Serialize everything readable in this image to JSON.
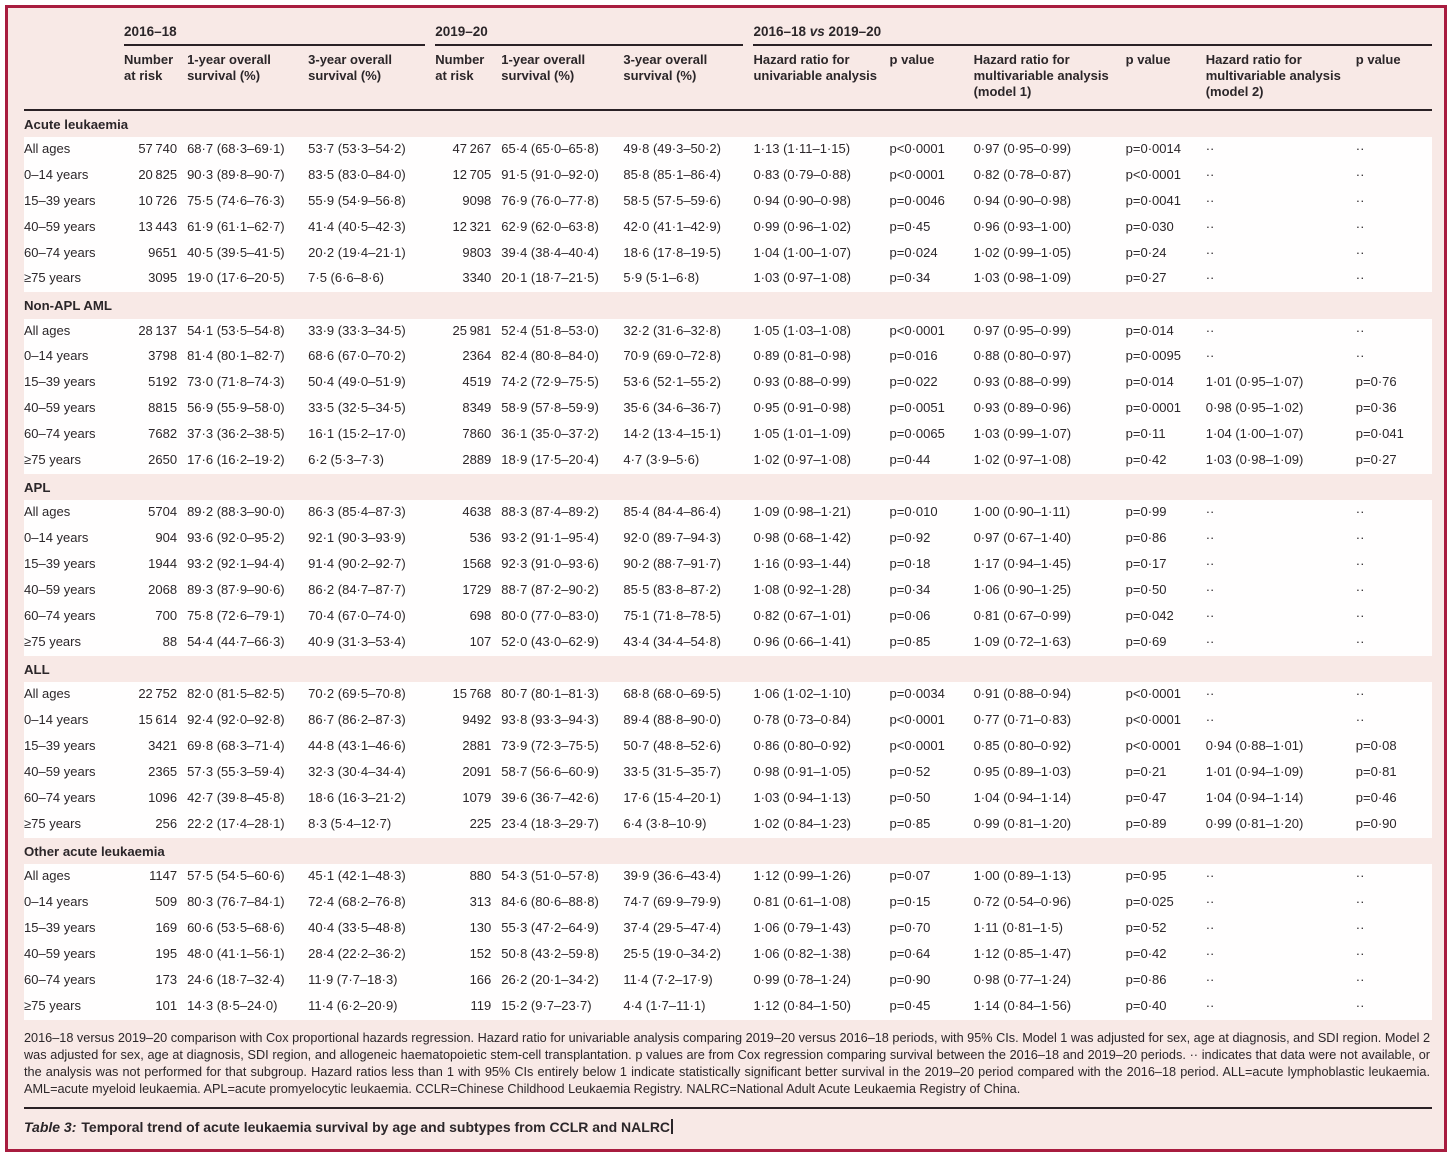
{
  "colors": {
    "frame": "#a81c3f",
    "pink": "#f8e9e6",
    "white": "#fffefe",
    "rule": "#2a2125",
    "text": "#2b2629"
  },
  "table": {
    "groups": [
      {
        "label": "2016–18",
        "span": 3,
        "parts": [
          {
            "t": "2016–18"
          }
        ]
      },
      {
        "label": "2019–20",
        "span": 3,
        "parts": [
          {
            "t": "2019–20"
          }
        ]
      },
      {
        "label": "2016–18 vs 2019–20",
        "span": 6,
        "parts": [
          {
            "t": "2016–18 "
          },
          {
            "t": "vs",
            "italic": true
          },
          {
            "t": " 2019–20"
          }
        ]
      }
    ],
    "columns": [
      "Number at risk",
      "1-year overall survival (%)",
      "3-year overall survival (%)",
      "Number at risk",
      "1-year overall survival (%)",
      "3-year overall survival (%)",
      "Hazard ratio for univariable analysis",
      "p value",
      "Hazard ratio for multivariable analysis (model 1)",
      "p value",
      "Hazard ratio for multivariable analysis (model 2)",
      "p value"
    ],
    "sections": [
      {
        "name": "Acute leukaemia",
        "rows": [
          {
            "label": "All ages",
            "cells": [
              "57 740",
              "68·7 (68·3–69·1)",
              "53·7 (53·3–54·2)",
              "47 267",
              "65·4 (65·0–65·8)",
              "49·8 (49·3–50·2)",
              "1·13 (1·11–1·15)",
              "p<0·0001",
              "0·97 (0·95–0·99)",
              "p=0·0014",
              "··",
              "··"
            ]
          },
          {
            "label": "0–14 years",
            "cells": [
              "20 825",
              "90·3 (89·8–90·7)",
              "83·5 (83·0–84·0)",
              "12 705",
              "91·5 (91·0–92·0)",
              "85·8 (85·1–86·4)",
              "0·83 (0·79–0·88)",
              "p<0·0001",
              "0·82 (0·78–0·87)",
              "p<0·0001",
              "··",
              "··"
            ]
          },
          {
            "label": "15–39 years",
            "cells": [
              "10 726",
              "75·5 (74·6–76·3)",
              "55·9 (54·9–56·8)",
              "9098",
              "76·9 (76·0–77·8)",
              "58·5 (57·5–59·6)",
              "0·94 (0·90–0·98)",
              "p=0·0046",
              "0·94 (0·90–0·98)",
              "p=0·0041",
              "··",
              "··"
            ]
          },
          {
            "label": "40–59 years",
            "cells": [
              "13 443",
              "61·9 (61·1–62·7)",
              "41·4 (40·5–42·3)",
              "12 321",
              "62·9 (62·0–63·8)",
              "42·0 (41·1–42·9)",
              "0·99 (0·96–1·02)",
              "p=0·45",
              "0·96 (0·93–1·00)",
              "p=0·030",
              "··",
              "··"
            ]
          },
          {
            "label": "60–74 years",
            "cells": [
              "9651",
              "40·5 (39·5–41·5)",
              "20·2 (19·4–21·1)",
              "9803",
              "39·4 (38·4–40·4)",
              "18·6 (17·8–19·5)",
              "1·04 (1·00–1·07)",
              "p=0·024",
              "1·02 (0·99–1·05)",
              "p=0·24",
              "··",
              "··"
            ]
          },
          {
            "label": "≥75 years",
            "cells": [
              "3095",
              "19·0 (17·6–20·5)",
              "7·5 (6·6–8·6)",
              "3340",
              "20·1 (18·7–21·5)",
              "5·9 (5·1–6·8)",
              "1·03 (0·97–1·08)",
              "p=0·34",
              "1·03 (0·98–1·09)",
              "p=0·27",
              "··",
              "··"
            ]
          }
        ]
      },
      {
        "name": "Non-APL AML",
        "rows": [
          {
            "label": "All ages",
            "cells": [
              "28 137",
              "54·1 (53·5–54·8)",
              "33·9 (33·3–34·5)",
              "25 981",
              "52·4 (51·8–53·0)",
              "32·2 (31·6–32·8)",
              "1·05 (1·03–1·08)",
              "p<0·0001",
              "0·97 (0·95–0·99)",
              "p=0·014",
              "··",
              "··"
            ]
          },
          {
            "label": "0–14 years",
            "cells": [
              "3798",
              "81·4 (80·1–82·7)",
              "68·6 (67·0–70·2)",
              "2364",
              "82·4 (80·8–84·0)",
              "70·9 (69·0–72·8)",
              "0·89 (0·81–0·98)",
              "p=0·016",
              "0·88 (0·80–0·97)",
              "p=0·0095",
              "··",
              "··"
            ]
          },
          {
            "label": "15–39 years",
            "cells": [
              "5192",
              "73·0 (71·8–74·3)",
              "50·4 (49·0–51·9)",
              "4519",
              "74·2 (72·9–75·5)",
              "53·6 (52·1–55·2)",
              "0·93 (0·88–0·99)",
              "p=0·022",
              "0·93 (0·88–0·99)",
              "p=0·014",
              "1·01 (0·95–1·07)",
              "p=0·76"
            ]
          },
          {
            "label": "40–59 years",
            "cells": [
              "8815",
              "56·9 (55·9–58·0)",
              "33·5 (32·5–34·5)",
              "8349",
              "58·9 (57·8–59·9)",
              "35·6 (34·6–36·7)",
              "0·95 (0·91–0·98)",
              "p=0·0051",
              "0·93 (0·89–0·96)",
              "p=0·0001",
              "0·98 (0·95–1·02)",
              "p=0·36"
            ]
          },
          {
            "label": "60–74 years",
            "cells": [
              "7682",
              "37·3 (36·2–38·5)",
              "16·1 (15·2–17·0)",
              "7860",
              "36·1 (35·0–37·2)",
              "14·2 (13·4–15·1)",
              "1·05 (1·01–1·09)",
              "p=0·0065",
              "1·03 (0·99–1·07)",
              "p=0·11",
              "1·04 (1·00–1·07)",
              "p=0·041"
            ]
          },
          {
            "label": "≥75 years",
            "cells": [
              "2650",
              "17·6 (16·2–19·2)",
              "6·2 (5·3–7·3)",
              "2889",
              "18·9 (17·5–20·4)",
              "4·7 (3·9–5·6)",
              "1·02 (0·97–1·08)",
              "p=0·44",
              "1·02 (0·97–1·08)",
              "p=0·42",
              "1·03 (0·98–1·09)",
              "p=0·27"
            ]
          }
        ]
      },
      {
        "name": "APL",
        "rows": [
          {
            "label": "All ages",
            "cells": [
              "5704",
              "89·2 (88·3–90·0)",
              "86·3 (85·4–87·3)",
              "4638",
              "88·3 (87·4–89·2)",
              "85·4 (84·4–86·4)",
              "1·09 (0·98–1·21)",
              "p=0·010",
              "1·00 (0·90–1·11)",
              "p=0·99",
              "··",
              "··"
            ]
          },
          {
            "label": "0–14 years",
            "cells": [
              "904",
              "93·6 (92·0–95·2)",
              "92·1 (90·3–93·9)",
              "536",
              "93·2 (91·1–95·4)",
              "92·0 (89·7–94·3)",
              "0·98 (0·68–1·42)",
              "p=0·92",
              "0·97 (0·67–1·40)",
              "p=0·86",
              "··",
              "··"
            ]
          },
          {
            "label": "15–39 years",
            "cells": [
              "1944",
              "93·2 (92·1–94·4)",
              "91·4 (90·2–92·7)",
              "1568",
              "92·3 (91·0–93·6)",
              "90·2 (88·7–91·7)",
              "1·16 (0·93–1·44)",
              "p=0·18",
              "1·17 (0·94–1·45)",
              "p=0·17",
              "··",
              "··"
            ]
          },
          {
            "label": "40–59 years",
            "cells": [
              "2068",
              "89·3 (87·9–90·6)",
              "86·2 (84·7–87·7)",
              "1729",
              "88·7 (87·2–90·2)",
              "85·5 (83·8–87·2)",
              "1·08 (0·92–1·28)",
              "p=0·34",
              "1·06 (0·90–1·25)",
              "p=0·50",
              "··",
              "··"
            ]
          },
          {
            "label": "60–74 years",
            "cells": [
              "700",
              "75·8 (72·6–79·1)",
              "70·4 (67·0–74·0)",
              "698",
              "80·0 (77·0–83·0)",
              "75·1 (71·8–78·5)",
              "0·82 (0·67–1·01)",
              "p=0·06",
              "0·81 (0·67–0·99)",
              "p=0·042",
              "··",
              "··"
            ]
          },
          {
            "label": "≥75 years",
            "cells": [
              "88",
              "54·4 (44·7–66·3)",
              "40·9 (31·3–53·4)",
              "107",
              "52·0 (43·0–62·9)",
              "43·4 (34·4–54·8)",
              "0·96 (0·66–1·41)",
              "p=0·85",
              "1·09 (0·72–1·63)",
              "p=0·69",
              "··",
              "··"
            ]
          }
        ]
      },
      {
        "name": "ALL",
        "rows": [
          {
            "label": "All ages",
            "cells": [
              "22 752",
              "82·0 (81·5–82·5)",
              "70·2 (69·5–70·8)",
              "15 768",
              "80·7 (80·1–81·3)",
              "68·8 (68·0–69·5)",
              "1·06 (1·02–1·10)",
              "p=0·0034",
              "0·91 (0·88–0·94)",
              "p<0·0001",
              "··",
              "··"
            ]
          },
          {
            "label": "0–14 years",
            "cells": [
              "15 614",
              "92·4 (92·0–92·8)",
              "86·7 (86·2–87·3)",
              "9492",
              "93·8 (93·3–94·3)",
              "89·4 (88·8–90·0)",
              "0·78 (0·73–0·84)",
              "p<0·0001",
              "0·77 (0·71–0·83)",
              "p<0·0001",
              "··",
              "··"
            ]
          },
          {
            "label": "15–39 years",
            "cells": [
              "3421",
              "69·8 (68·3–71·4)",
              "44·8 (43·1–46·6)",
              "2881",
              "73·9 (72·3–75·5)",
              "50·7 (48·8–52·6)",
              "0·86 (0·80–0·92)",
              "p<0·0001",
              "0·85 (0·80–0·92)",
              "p<0·0001",
              "0·94 (0·88–1·01)",
              "p=0·08"
            ]
          },
          {
            "label": "40–59 years",
            "cells": [
              "2365",
              "57·3 (55·3–59·4)",
              "32·3 (30·4–34·4)",
              "2091",
              "58·7 (56·6–60·9)",
              "33·5 (31·5–35·7)",
              "0·98 (0·91–1·05)",
              "p=0·52",
              "0·95 (0·89–1·03)",
              "p=0·21",
              "1·01 (0·94–1·09)",
              "p=0·81"
            ]
          },
          {
            "label": "60–74 years",
            "cells": [
              "1096",
              "42·7 (39·8–45·8)",
              "18·6 (16·3–21·2)",
              "1079",
              "39·6 (36·7–42·6)",
              "17·6 (15·4–20·1)",
              "1·03 (0·94–1·13)",
              "p=0·50",
              "1·04 (0·94–1·14)",
              "p=0·47",
              "1·04 (0·94–1·14)",
              "p=0·46"
            ]
          },
          {
            "label": "≥75 years",
            "cells": [
              "256",
              "22·2 (17·4–28·1)",
              "8·3 (5·4–12·7)",
              "225",
              "23·4 (18·3–29·7)",
              "6·4 (3·8–10·9)",
              "1·02 (0·84–1·23)",
              "p=0·85",
              "0·99 (0·81–1·20)",
              "p=0·89",
              "0·99 (0·81–1·20)",
              "p=0·90"
            ]
          }
        ]
      },
      {
        "name": "Other acute leukaemia",
        "rows": [
          {
            "label": "All ages",
            "cells": [
              "1147",
              "57·5 (54·5–60·6)",
              "45·1 (42·1–48·3)",
              "880",
              "54·3 (51·0–57·8)",
              "39·9 (36·6–43·4)",
              "1·12 (0·99–1·26)",
              "p=0·07",
              "1·00 (0·89–1·13)",
              "p=0·95",
              "··",
              "··"
            ]
          },
          {
            "label": "0–14 years",
            "cells": [
              "509",
              "80·3 (76·7–84·1)",
              "72·4 (68·2–76·8)",
              "313",
              "84·6 (80·6–88·8)",
              "74·7 (69·9–79·9)",
              "0·81 (0·61–1·08)",
              "p=0·15",
              "0·72 (0·54–0·96)",
              "p=0·025",
              "··",
              "··"
            ]
          },
          {
            "label": "15–39 years",
            "cells": [
              "169",
              "60·6 (53·5–68·6)",
              "40·4 (33·5–48·8)",
              "130",
              "55·3 (47·2–64·9)",
              "37·4 (29·5–47·4)",
              "1·06 (0·79–1·43)",
              "p=0·70",
              "1·11 (0·81–1·5)",
              "p=0·52",
              "··",
              "··"
            ]
          },
          {
            "label": "40–59 years",
            "cells": [
              "195",
              "48·0 (41·1–56·1)",
              "28·4 (22·2–36·2)",
              "152",
              "50·8 (43·2–59·8)",
              "25·5 (19·0–34·2)",
              "1·06 (0·82–1·38)",
              "p=0·64",
              "1·12 (0·85–1·47)",
              "p=0·42",
              "··",
              "··"
            ]
          },
          {
            "label": "60–74 years",
            "cells": [
              "173",
              "24·6 (18·7–32·4)",
              "11·9 (7·7–18·3)",
              "166",
              "26·2 (20·1–34·2)",
              "11·4 (7·2–17·9)",
              "0·99 (0·78–1·24)",
              "p=0·90",
              "0·98 (0·77–1·24)",
              "p=0·86",
              "··",
              "··"
            ]
          },
          {
            "label": "≥75 years",
            "cells": [
              "101",
              "14·3 (8·5–24·0)",
              "11·4 (6·2–20·9)",
              "119",
              "15·2 (9·7–23·7)",
              "4·4 (1·7–11·1)",
              "1·12 (0·84–1·50)",
              "p=0·45",
              "1·14 (0·84–1·56)",
              "p=0·40",
              "··",
              "··"
            ]
          }
        ]
      }
    ]
  },
  "footnote": "2016–18 versus 2019–20 comparison with Cox proportional hazards regression. Hazard ratio for univariable analysis comparing 2019–20 versus 2016–18 periods, with 95% CIs. Model 1 was adjusted for sex, age at diagnosis, and SDI region. Model 2 was adjusted for sex, age at diagnosis, SDI region, and allogeneic haematopoietic stem-cell transplantation. p values are from Cox regression comparing survival between the 2016–18 and 2019–20 periods. ·· indicates that data were not available, or the analysis was not performed for that subgroup. Hazard ratios less than 1 with 95% CIs entirely below 1 indicate statistically significant better survival in the 2019–20 period compared with the 2016–18 period. ALL=acute lymphoblastic leukaemia. AML=acute myeloid leukaemia. APL=acute promyelocytic leukaemia. CCLR=Chinese Childhood Leukaemia Registry. NALRC=National Adult Acute Leukaemia Registry of China.",
  "caption": {
    "label": "Table 3:",
    "text": "Temporal trend of acute leukaemia survival by age and subtypes from CCLR and NALRC"
  }
}
